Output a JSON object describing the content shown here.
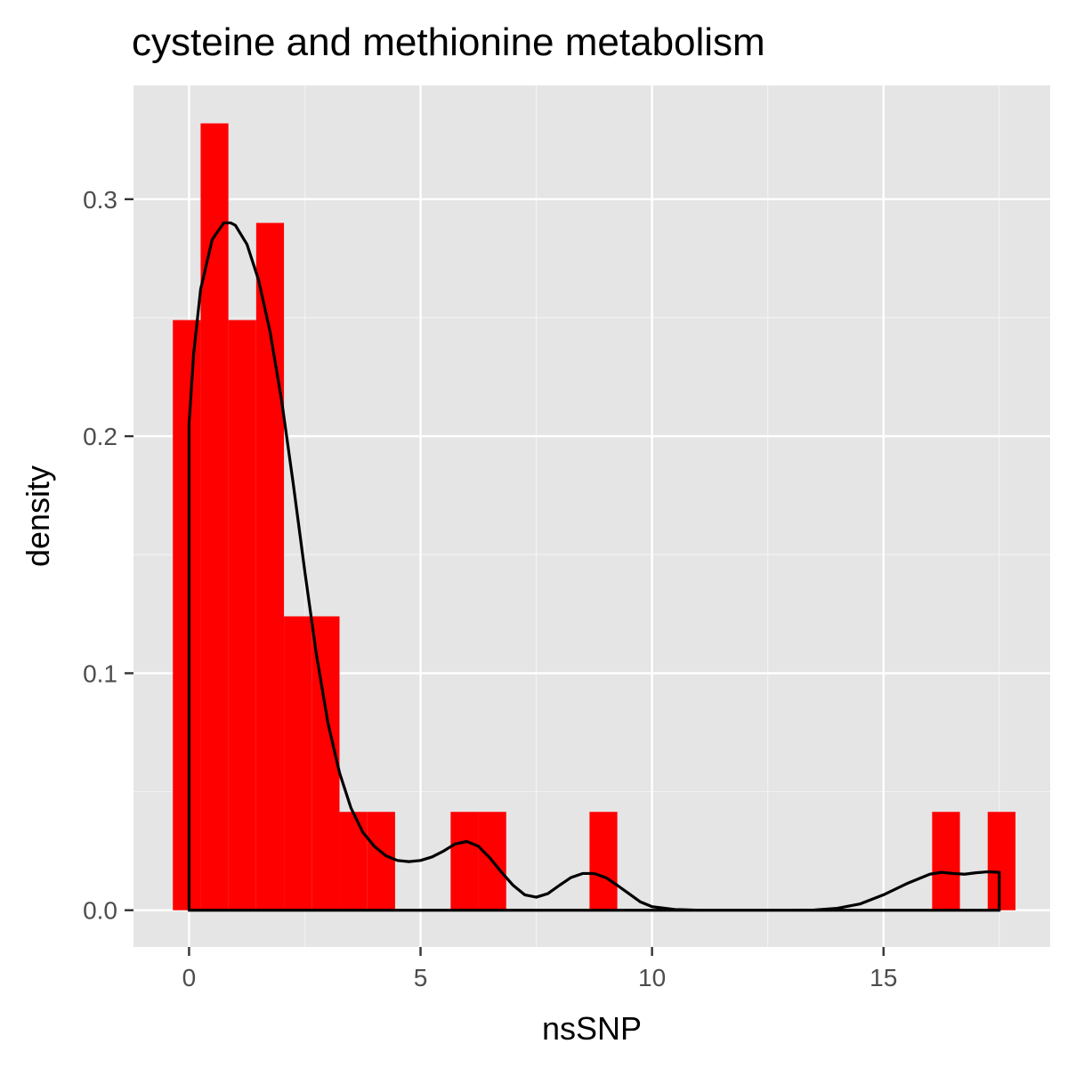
{
  "chart_data": {
    "type": "histogram",
    "title": "cysteine and methionine metabolism",
    "xlabel": "nsSNP",
    "ylabel": "density",
    "xlim": [
      -1.2,
      18.6
    ],
    "ylim": [
      -0.0155,
      0.348
    ],
    "x_ticks": [
      0,
      5,
      10,
      15
    ],
    "x_tick_labels": [
      "0",
      "5",
      "10",
      "15"
    ],
    "y_ticks": [
      0.0,
      0.1,
      0.2,
      0.3
    ],
    "y_tick_labels": [
      "0.0",
      "0.1",
      "0.2",
      "0.3"
    ],
    "grid": true,
    "background": "#e5e5e5",
    "bar_fill": "#ff0000",
    "density_color": "#000000",
    "bins": [
      {
        "x0": -0.35,
        "x1": 0.25,
        "density": 0.249
      },
      {
        "x0": 0.25,
        "x1": 0.85,
        "density": 0.332
      },
      {
        "x0": 0.85,
        "x1": 1.45,
        "density": 0.249
      },
      {
        "x0": 1.45,
        "x1": 2.05,
        "density": 0.29
      },
      {
        "x0": 2.05,
        "x1": 2.65,
        "density": 0.124
      },
      {
        "x0": 2.65,
        "x1": 3.25,
        "density": 0.124
      },
      {
        "x0": 3.25,
        "x1": 3.85,
        "density": 0.0415
      },
      {
        "x0": 3.85,
        "x1": 4.45,
        "density": 0.0415
      },
      {
        "x0": 5.65,
        "x1": 6.25,
        "density": 0.0415
      },
      {
        "x0": 6.25,
        "x1": 6.85,
        "density": 0.0415
      },
      {
        "x0": 8.65,
        "x1": 9.25,
        "density": 0.0415
      },
      {
        "x0": 16.05,
        "x1": 16.65,
        "density": 0.0415
      },
      {
        "x0": 17.25,
        "x1": 17.85,
        "density": 0.0415
      }
    ],
    "density_curve": {
      "x": [
        0,
        0.1,
        0.25,
        0.5,
        0.75,
        0.9,
        1.0,
        1.25,
        1.5,
        1.75,
        2.0,
        2.25,
        2.5,
        2.75,
        3.0,
        3.25,
        3.5,
        3.75,
        4.0,
        4.25,
        4.5,
        4.75,
        5.0,
        5.25,
        5.5,
        5.75,
        6.0,
        6.25,
        6.5,
        6.75,
        7.0,
        7.25,
        7.5,
        7.75,
        8.0,
        8.25,
        8.5,
        8.75,
        9.0,
        9.25,
        9.5,
        9.75,
        10.0,
        10.5,
        11.0,
        12.0,
        13.0,
        13.5,
        14.0,
        14.5,
        15.0,
        15.5,
        16.0,
        16.25,
        16.5,
        16.75,
        17.0,
        17.25,
        17.5
      ],
      "y": [
        0.205,
        0.235,
        0.262,
        0.283,
        0.29,
        0.29,
        0.289,
        0.281,
        0.266,
        0.244,
        0.215,
        0.18,
        0.143,
        0.108,
        0.079,
        0.058,
        0.043,
        0.033,
        0.027,
        0.023,
        0.021,
        0.0205,
        0.021,
        0.0225,
        0.025,
        0.028,
        0.029,
        0.027,
        0.022,
        0.016,
        0.0105,
        0.0065,
        0.0055,
        0.007,
        0.0105,
        0.0138,
        0.0155,
        0.0155,
        0.0138,
        0.0105,
        0.007,
        0.0035,
        0.0015,
        0.0003,
        0.0,
        0.0,
        0.0,
        0.0001,
        0.0008,
        0.0027,
        0.0065,
        0.0112,
        0.0152,
        0.016,
        0.0155,
        0.0152,
        0.0158,
        0.0162,
        0.016
      ]
    }
  }
}
